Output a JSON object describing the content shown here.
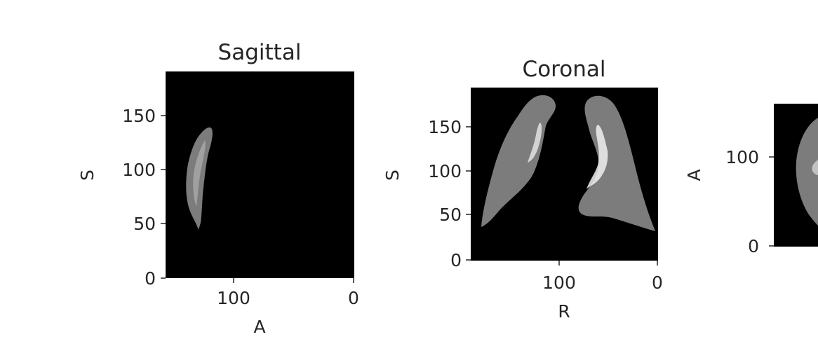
{
  "chart_data": [
    {
      "type": "image",
      "title": "Sagittal",
      "xlabel": "A",
      "ylabel": "S",
      "xlim": [
        160,
        0
      ],
      "ylim": [
        0,
        190
      ],
      "xticks": [
        {
          "value": 100,
          "label": "100"
        },
        {
          "value": 0,
          "label": "0"
        }
      ],
      "yticks": [
        {
          "value": 0,
          "label": "0"
        },
        {
          "value": 50,
          "label": "50"
        },
        {
          "value": 100,
          "label": "100"
        },
        {
          "value": 150,
          "label": "150"
        }
      ],
      "background": "#000000"
    },
    {
      "type": "image",
      "title": "Coronal",
      "xlabel": "R",
      "ylabel": "S",
      "xlim": [
        190,
        0
      ],
      "ylim": [
        0,
        190
      ],
      "xticks": [
        {
          "value": 100,
          "label": "100"
        },
        {
          "value": 0,
          "label": "0"
        }
      ],
      "yticks": [
        {
          "value": 0,
          "label": "0"
        },
        {
          "value": 50,
          "label": "50"
        },
        {
          "value": 100,
          "label": "100"
        },
        {
          "value": 150,
          "label": "150"
        }
      ],
      "background": "#000000"
    },
    {
      "type": "image",
      "title": "",
      "xlabel": "",
      "ylabel": "A",
      "ylim": [
        0,
        160
      ],
      "yticks": [
        {
          "value": 0,
          "label": "0"
        },
        {
          "value": 100,
          "label": "100"
        }
      ],
      "background": "#000000"
    }
  ]
}
